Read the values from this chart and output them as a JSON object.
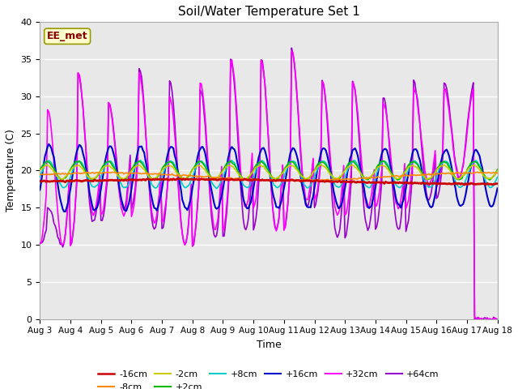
{
  "title": "Soil/Water Temperature Set 1",
  "xlabel": "Time",
  "ylabel": "Temperature (C)",
  "ylim": [
    0,
    40
  ],
  "yticks": [
    0,
    5,
    10,
    15,
    20,
    25,
    30,
    35,
    40
  ],
  "xtick_labels": [
    "Aug 3",
    "Aug 4",
    "Aug 5",
    "Aug 6",
    "Aug 7",
    "Aug 8",
    "Aug 9",
    "Aug 10",
    "Aug 11",
    "Aug 12",
    "Aug 13",
    "Aug 14",
    "Aug 15",
    "Aug 16",
    "Aug 17",
    "Aug 18"
  ],
  "annotation_text": "EE_met",
  "annotation_text_color": "#8b0000",
  "annotation_box_facecolor": "#ffffcc",
  "annotation_box_edgecolor": "#999900",
  "background_color": "#e8e8e8",
  "fig_background": "#ffffff",
  "grid_color": "#ffffff",
  "colors": {
    "-16cm": "#cc0000",
    "-8cm": "#ff8800",
    "-2cm": "#cccc00",
    "+2cm": "#00bb00",
    "+8cm": "#00cccc",
    "+16cm": "#0000cc",
    "+32cm": "#ff00ff",
    "+64cm": "#9900cc"
  }
}
